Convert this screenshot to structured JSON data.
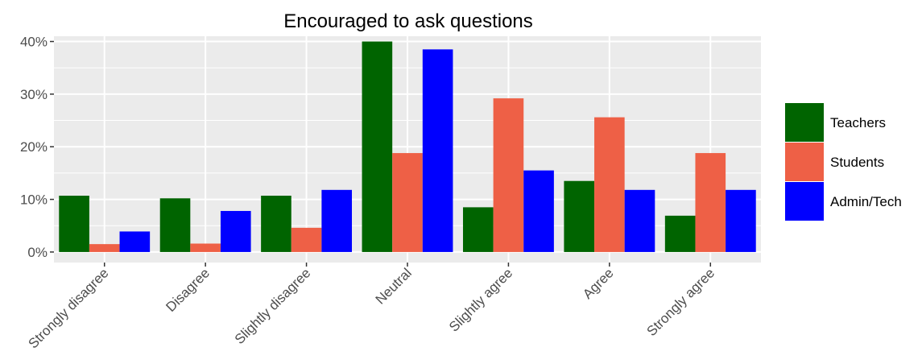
{
  "chart_data": {
    "type": "bar",
    "title": "Encouraged to ask questions",
    "xlabel": "",
    "ylabel": "",
    "categories": [
      "Strongly disagree",
      "Disagree",
      "Slightly disagree",
      "Neutral",
      "Slightly agree",
      "Agree",
      "Strongly agree"
    ],
    "series": [
      {
        "name": "Teachers",
        "color": "#006400",
        "values": [
          10.7,
          10.2,
          10.7,
          40.0,
          8.5,
          13.5,
          6.9
        ]
      },
      {
        "name": "Students",
        "color": "#EE6046",
        "values": [
          1.5,
          1.6,
          4.6,
          18.8,
          29.2,
          25.6,
          18.8
        ]
      },
      {
        "name": "Admin/Tech",
        "color": "#0000FF",
        "values": [
          3.9,
          7.8,
          11.8,
          38.5,
          15.5,
          11.8,
          11.8
        ]
      }
    ],
    "y_ticks": [
      0,
      10,
      20,
      30,
      40
    ],
    "y_tick_labels": [
      "0%",
      "10%",
      "20%",
      "30%",
      "40%"
    ],
    "ylim": [
      -2,
      41
    ],
    "grid": true,
    "panel_background": "#EBEBEB",
    "legend_position": "right"
  }
}
